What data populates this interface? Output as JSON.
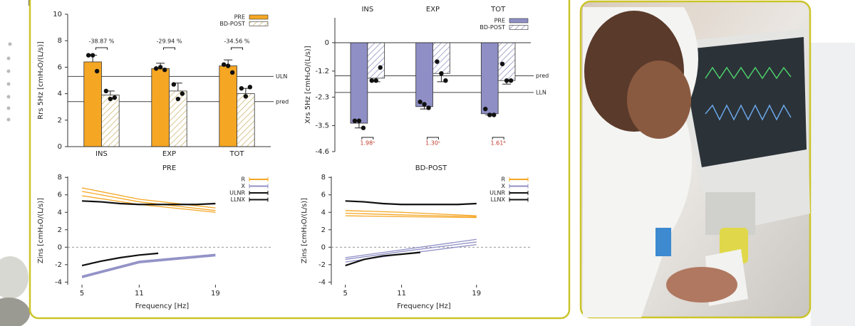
{
  "chart_data": [
    {
      "type": "bar",
      "y_label": "Rrs 5Hz [cmH₂O/(L/s)]",
      "categories": [
        "INS",
        "EXP",
        "TOT"
      ],
      "x_axis_position": "bottom",
      "series": [
        {
          "name": "PRE",
          "color": "#f5a623",
          "values": [
            6.4,
            5.9,
            6.1
          ],
          "errors": [
            0.5,
            0.4,
            0.45
          ],
          "points": [
            [
              6.9,
              6.9,
              5.7
            ],
            [
              5.9,
              6.0,
              5.8
            ],
            [
              6.2,
              6.1,
              5.6
            ]
          ]
        },
        {
          "name": "BD-POST",
          "color": "#d8c690",
          "hatch": true,
          "values": [
            3.9,
            4.2,
            4.0
          ],
          "errors": [
            0.3,
            0.6,
            0.4
          ],
          "points": [
            [
              4.2,
              3.6,
              3.7
            ],
            [
              4.7,
              3.6,
              4.0
            ],
            [
              4.4,
              3.8,
              4.5
            ]
          ]
        }
      ],
      "ylim": [
        0,
        10
      ],
      "yticks": [
        0,
        2,
        4,
        6,
        8,
        10
      ],
      "reference_lines": [
        {
          "value": 5.3,
          "label": "ULN"
        },
        {
          "value": 3.4,
          "label": "pred"
        }
      ],
      "annotations": [
        "-38.87 %",
        "-29.94 %",
        "-34.56 %"
      ],
      "annotation_color": "#222",
      "legend": "upper right"
    },
    {
      "type": "bar",
      "y_label": "Xrs 5Hz [cmH₂O/(L/s)]",
      "categories": [
        "INS",
        "EXP",
        "TOT"
      ],
      "x_axis_position": "top",
      "series": [
        {
          "name": "PRE",
          "color": "#8f8fc6",
          "values": [
            -3.4,
            -2.7,
            -3.0
          ],
          "errors": [
            0.2,
            0.1,
            0.05
          ],
          "points": [
            [
              -3.3,
              -3.3,
              -3.6
            ],
            [
              -2.5,
              -2.6,
              -2.75
            ],
            [
              -2.8,
              -3.05,
              -3.05
            ]
          ]
        },
        {
          "name": "BD-POST",
          "color": "#a9a9cf",
          "hatch": true,
          "values": [
            -1.5,
            -1.3,
            -1.6
          ],
          "errors": [
            0.15,
            0.35,
            0.15
          ],
          "points": [
            [
              -1.6,
              -1.6,
              -1.05
            ],
            [
              -0.8,
              -1.3,
              -1.6
            ],
            [
              -0.9,
              -1.6,
              -1.6
            ]
          ]
        }
      ],
      "ylim": [
        -4.6,
        1.05
      ],
      "yticks": [
        0,
        -1.2,
        -2.3,
        -3.5,
        -4.6
      ],
      "reference_lines": [
        {
          "value": -1.4,
          "label": "pred"
        },
        {
          "value": -2.1,
          "label": "LLN"
        }
      ],
      "annotations": [
        "1.98ˢ",
        "1.30ˢ",
        "1.61ᴿ"
      ],
      "annotation_color": "#c0392b",
      "legend": "upper right"
    },
    {
      "type": "line",
      "title": "PRE",
      "x_label": "Frequency [Hz]",
      "y_label": "Zins [cmH₂O/(L/s)]",
      "x": [
        5,
        11,
        19
      ],
      "xlim": [
        3.5,
        24.8
      ],
      "xticks": [
        5,
        11,
        19
      ],
      "ylim": [
        -4.3,
        8.1
      ],
      "yticks": [
        -4,
        -2,
        0,
        2,
        4,
        6,
        8
      ],
      "zero_line": true,
      "series": [
        {
          "name": "R",
          "color": "#f5a623",
          "values": [
            [
              6.8,
              5.5,
              4.5
            ],
            [
              6.4,
              5.2,
              4.2
            ],
            [
              5.9,
              4.9,
              4.0
            ]
          ]
        },
        {
          "name": "X",
          "color": "#8f8fc6",
          "values": [
            [
              -3.3,
              -1.6,
              -0.8
            ],
            [
              -3.4,
              -1.7,
              -0.9
            ],
            [
              -3.5,
              -1.8,
              -1.0
            ]
          ]
        },
        {
          "name": "ULNR",
          "color": "#111",
          "x": [
            5,
            7,
            9,
            11,
            13,
            15,
            17,
            19
          ],
          "values": [
            5.3,
            5.2,
            5.0,
            4.9,
            4.9,
            4.9,
            4.9,
            5.0
          ]
        },
        {
          "name": "LLNX",
          "color": "#111",
          "x": [
            5,
            7,
            9,
            11,
            13
          ],
          "values": [
            -2.1,
            -1.6,
            -1.2,
            -0.9,
            -0.7
          ]
        }
      ],
      "legend": "upper right"
    },
    {
      "type": "line",
      "title": "BD-POST",
      "x_label": "Frequency [Hz]",
      "y_label": "Zins [cmH₂O/(L/s)]",
      "x": [
        5,
        11,
        19
      ],
      "xlim": [
        3.5,
        24.8
      ],
      "xticks": [
        5,
        11,
        19
      ],
      "ylim": [
        -4.3,
        8.1
      ],
      "yticks": [
        -4,
        -2,
        0,
        2,
        4,
        6,
        8
      ],
      "zero_line": true,
      "series": [
        {
          "name": "R",
          "color": "#f5a623",
          "values": [
            [
              4.2,
              4.0,
              3.6
            ],
            [
              3.9,
              3.7,
              3.5
            ],
            [
              3.6,
              3.5,
              3.4
            ]
          ]
        },
        {
          "name": "X",
          "color": "#8f8fc6",
          "values": [
            [
              -1.2,
              -0.3,
              0.9
            ],
            [
              -1.4,
              -0.5,
              0.6
            ],
            [
              -1.7,
              -0.8,
              0.3
            ]
          ]
        },
        {
          "name": "ULNR",
          "color": "#111",
          "x": [
            5,
            7,
            9,
            11,
            13,
            15,
            17,
            19
          ],
          "values": [
            5.3,
            5.2,
            5.0,
            4.9,
            4.9,
            4.9,
            4.9,
            5.0
          ]
        },
        {
          "name": "LLNX",
          "color": "#111",
          "x": [
            5,
            7,
            9,
            11,
            13
          ],
          "values": [
            -2.1,
            -1.4,
            -1.0,
            -0.8,
            -0.6
          ]
        }
      ],
      "legend": "upper right"
    }
  ]
}
